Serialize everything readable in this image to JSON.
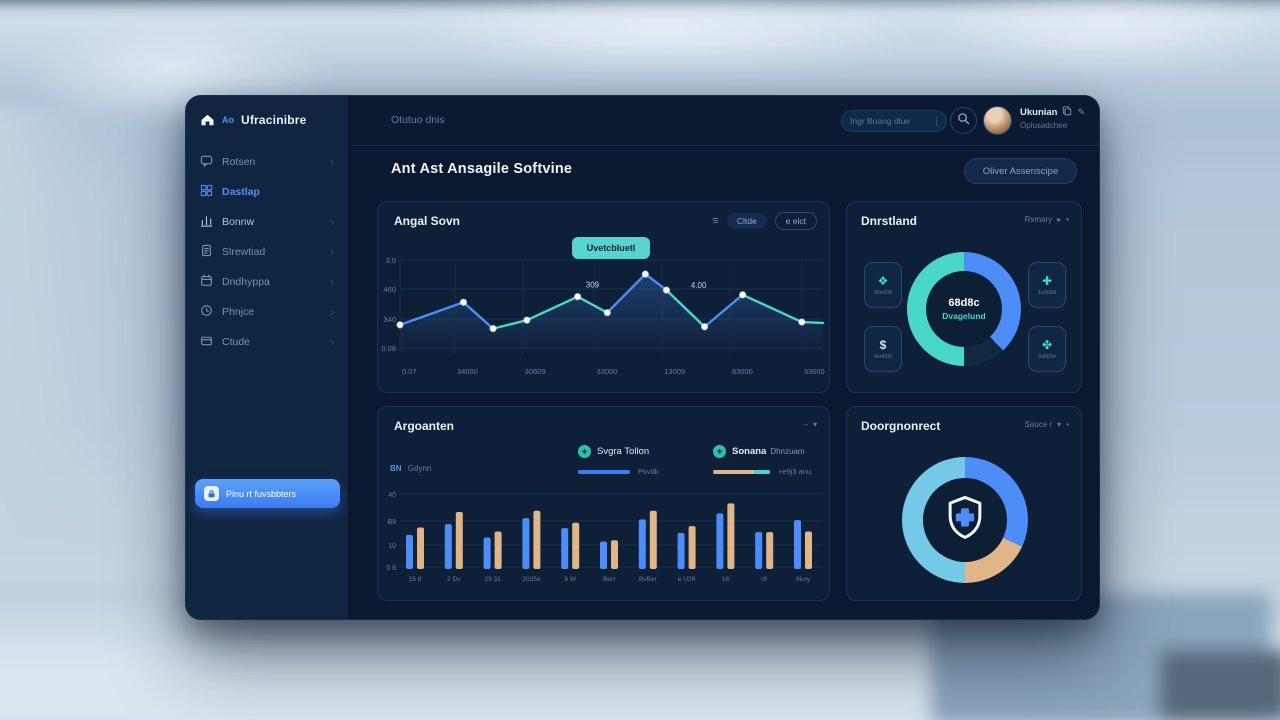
{
  "colors": {
    "accent_blue": "#4d8df7",
    "teal": "#49d7c6",
    "tan": "#e0b588",
    "sky": "#74c9e6"
  },
  "brand": {
    "prefix": "Ao",
    "name": "Ufracinibre"
  },
  "topbar": {
    "breadcrumb": "Otutuo dnis",
    "search_placeholder": "Ingr Buang dlue",
    "user_name": "Ukunian",
    "user_subtitle": "Oplusadchee"
  },
  "sidebar": {
    "items": [
      {
        "label": "Rotsen",
        "icon": "chat",
        "active": false,
        "bright": false,
        "chevron": true
      },
      {
        "label": "Dastlap",
        "icon": "dashboard",
        "active": true,
        "bright": false,
        "chevron": false
      },
      {
        "label": "Bonnw",
        "icon": "chart",
        "active": false,
        "bright": true,
        "chevron": true
      },
      {
        "label": "Slrewtiad",
        "icon": "document",
        "active": false,
        "bright": false,
        "chevron": true
      },
      {
        "label": "Dndhyppa",
        "icon": "calendar",
        "active": false,
        "bright": false,
        "chevron": true
      },
      {
        "label": "Phnjce",
        "icon": "phone",
        "active": false,
        "bright": false,
        "chevron": true
      },
      {
        "label": "Ctude",
        "icon": "wallet",
        "active": false,
        "bright": false,
        "chevron": true
      }
    ],
    "cta_label": "Pinu rt fuvsbbters"
  },
  "page": {
    "title": "Ant Ast Ansagile Softvine",
    "action_button": "Oliver Assenscipe"
  },
  "line_panel": {
    "title": "Angal Sovn",
    "menu_button": "Cltde",
    "range_button": "e elct",
    "badge": "Uvetcbluetl"
  },
  "donut_panel": {
    "title": "Dnrstland",
    "link": "Rsmary",
    "center_value": "68d8c",
    "center_label": "Dvagelund",
    "tiles": [
      {
        "icon": "sparkle",
        "label": "36e609"
      },
      {
        "icon": "dollar",
        "label": "4sn600"
      },
      {
        "icon": "medical-cross",
        "label": "1s360d"
      },
      {
        "icon": "clover",
        "label": "3d609e"
      }
    ]
  },
  "bar_panel": {
    "title": "Argoanten",
    "corner_label_strong": "BN",
    "corner_label": "Gdynn",
    "legend": [
      {
        "title_strong": "",
        "title": "Svgra Tollon",
        "value": "Psvdb"
      },
      {
        "title_strong": "Sonana",
        "title": "Dhnzuam",
        "value": "+e9j3 anu"
      }
    ]
  },
  "donut2_panel": {
    "title": "Doorgnonrect",
    "link": "Sauce r"
  },
  "chart_data": [
    {
      "id": "line",
      "type": "line",
      "title": "Angal Sovn",
      "y_ticks": [
        "3.0",
        "460",
        "340",
        "0.08"
      ],
      "x_ticks": [
        "0.07",
        "34000",
        "30609",
        "33000",
        "13009",
        "83000",
        "33600"
      ],
      "x_tick_pos": [
        0,
        13,
        29,
        46,
        62,
        78,
        95
      ],
      "ylim": [
        0,
        100
      ],
      "grid": true,
      "points": [
        {
          "x": 0,
          "y": 31
        },
        {
          "x": 15,
          "y": 55
        },
        {
          "x": 22,
          "y": 27
        },
        {
          "x": 30,
          "y": 36
        },
        {
          "x": 42,
          "y": 61
        },
        {
          "x": 49,
          "y": 44
        },
        {
          "x": 58,
          "y": 85
        },
        {
          "x": 63,
          "y": 68
        },
        {
          "x": 72,
          "y": 29
        },
        {
          "x": 81,
          "y": 63
        },
        {
          "x": 95,
          "y": 34
        },
        {
          "x": 100,
          "y": 33
        }
      ],
      "segment_colors": [
        "#4d8df7",
        "#4d8df7",
        "#49d7c6",
        "#49d7c6",
        "#49d7c6",
        "#4d8df7",
        "#4d8df7",
        "#49d7c6",
        "#4d8df7",
        "#49d7c6",
        "#49d7c6"
      ],
      "point_labels": [
        {
          "x": 45.5,
          "y": 71,
          "text": "309"
        },
        {
          "x": 70.6,
          "y": 70,
          "text": "4.00"
        }
      ]
    },
    {
      "id": "donut-1",
      "type": "pie",
      "title": "Dnrstland",
      "center_value": "68d8c",
      "center_label": "Dvagelund",
      "slices": [
        {
          "label": "segment-blue",
          "value": 38,
          "color": "#4d8df7"
        },
        {
          "label": "segment-gap",
          "value": 12,
          "color": "#11293f"
        },
        {
          "label": "segment-teal",
          "value": 50,
          "color": "#49d7c6"
        }
      ]
    },
    {
      "id": "bars",
      "type": "bar",
      "title": "Argoanten",
      "categories": [
        "15 8",
        "2 Dv",
        "29 31",
        "2025e",
        "8 W",
        "9lorr",
        "BvBer",
        "e U29",
        "18",
        "r8",
        "9lory"
      ],
      "y_ticks": [
        "40",
        "B9",
        "10",
        "0 8"
      ],
      "ylim": [
        0,
        100
      ],
      "grid": true,
      "series": [
        {
          "name": "blue",
          "color": "#4d8df7",
          "values": [
            51,
            67,
            47,
            76,
            61,
            41,
            74,
            54,
            83,
            55,
            73
          ]
        },
        {
          "name": "tan",
          "color": "#e0b588",
          "values": [
            62,
            85,
            56,
            87,
            69,
            43,
            87,
            64,
            98,
            55,
            56
          ]
        }
      ]
    },
    {
      "id": "donut-2",
      "type": "pie",
      "title": "Doorgnonrect",
      "center_icon": "shield-cross",
      "slices": [
        {
          "label": "segment-blue",
          "value": 32,
          "color": "#4d8df7"
        },
        {
          "label": "segment-tan",
          "value": 18,
          "color": "#e0b588"
        },
        {
          "label": "segment-sky",
          "value": 50,
          "color": "#74c9e6"
        }
      ]
    }
  ]
}
